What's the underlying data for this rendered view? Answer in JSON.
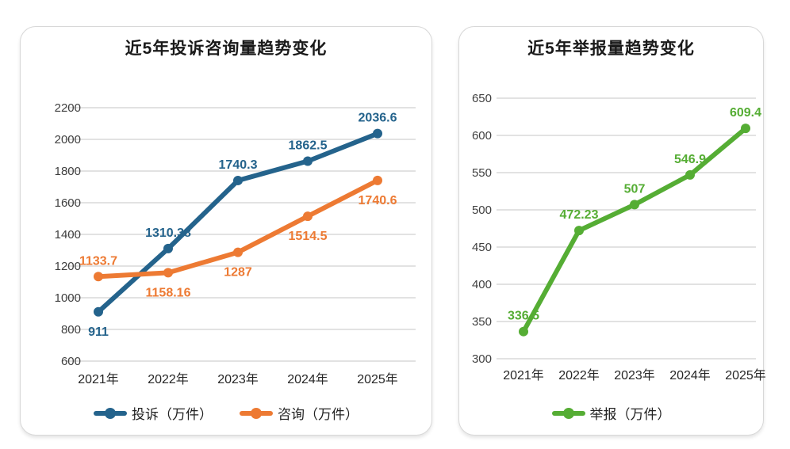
{
  "page": {
    "background_color": "#ffffff",
    "card_border_color": "#d8d8d8"
  },
  "styles": {
    "gridline_color": "#d9d9d9",
    "tick_label_color": "#3f3f3f",
    "x_label_color": "#262626",
    "title_color": "#1a1a1a"
  },
  "chart_data": [
    {
      "type": "line",
      "title": "近5年投诉咨询量趋势变化",
      "categories": [
        "2021年",
        "2022年",
        "2023年",
        "2024年",
        "2025年"
      ],
      "series": [
        {
          "id": "complaints",
          "name": "投诉（万件）",
          "color": "#24638c",
          "values": [
            911,
            1310.38,
            1740.3,
            1862.5,
            2036.6
          ],
          "label_positions": [
            "below",
            "above",
            "above",
            "above",
            "above"
          ]
        },
        {
          "id": "consultations",
          "name": "咨询（万件）",
          "color": "#ed7a33",
          "values": [
            1133.7,
            1158.16,
            1287,
            1514.5,
            1740.6
          ],
          "label_positions": [
            "above",
            "below",
            "below",
            "below",
            "below"
          ]
        }
      ],
      "ylim": [
        600,
        2200
      ],
      "ytick_step": 200,
      "grid": true,
      "legend_position": "bottom"
    },
    {
      "type": "line",
      "title": "近5年举报量趋势变化",
      "categories": [
        "2021年",
        "2022年",
        "2023年",
        "2024年",
        "2025年"
      ],
      "series": [
        {
          "id": "reports",
          "name": "举报（万件）",
          "color": "#55ad34",
          "values": [
            336.5,
            472.23,
            507,
            546.9,
            609.4
          ],
          "label_positions": [
            "above",
            "above",
            "above",
            "above",
            "above"
          ]
        }
      ],
      "ylim": [
        300,
        650
      ],
      "ytick_step": 50,
      "grid": true,
      "legend_position": "bottom"
    }
  ]
}
